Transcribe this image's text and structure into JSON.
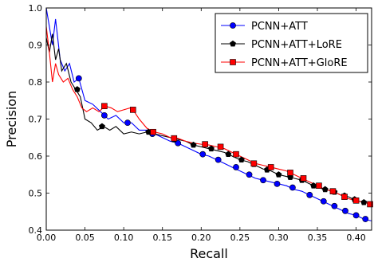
{
  "chart_data": {
    "type": "line",
    "xlabel": "Recall",
    "ylabel": "Precision",
    "xlim": [
      0.0,
      0.42
    ],
    "ylim": [
      0.4,
      1.0
    ],
    "xticks": [
      "0.00",
      "0.05",
      "0.10",
      "0.15",
      "0.20",
      "0.25",
      "0.30",
      "0.35",
      "0.40"
    ],
    "yticks": [
      "0.4",
      "0.5",
      "0.6",
      "0.7",
      "0.8",
      "0.9",
      "1.0"
    ],
    "grid": false,
    "legend_position": "top-right",
    "series": [
      {
        "name": "PCNN+ATT",
        "color": "#0000ff",
        "marker": "circle",
        "points": [
          [
            0.0,
            1.0
          ],
          [
            0.004,
            0.95
          ],
          [
            0.008,
            0.9
          ],
          [
            0.012,
            0.97
          ],
          [
            0.018,
            0.86
          ],
          [
            0.024,
            0.83
          ],
          [
            0.03,
            0.85
          ],
          [
            0.036,
            0.8
          ],
          [
            0.042,
            0.81
          ],
          [
            0.05,
            0.75
          ],
          [
            0.06,
            0.74
          ],
          [
            0.07,
            0.72
          ],
          [
            0.08,
            0.7
          ],
          [
            0.09,
            0.71
          ],
          [
            0.1,
            0.69
          ],
          [
            0.11,
            0.69
          ],
          [
            0.12,
            0.67
          ],
          [
            0.13,
            0.67
          ],
          [
            0.14,
            0.66
          ],
          [
            0.15,
            0.65
          ],
          [
            0.16,
            0.64
          ],
          [
            0.17,
            0.635
          ],
          [
            0.18,
            0.625
          ],
          [
            0.19,
            0.615
          ],
          [
            0.2,
            0.605
          ],
          [
            0.21,
            0.6
          ],
          [
            0.22,
            0.59
          ],
          [
            0.23,
            0.58
          ],
          [
            0.24,
            0.57
          ],
          [
            0.25,
            0.56
          ],
          [
            0.26,
            0.55
          ],
          [
            0.27,
            0.54
          ],
          [
            0.28,
            0.535
          ],
          [
            0.29,
            0.53
          ],
          [
            0.3,
            0.525
          ],
          [
            0.31,
            0.52
          ],
          [
            0.32,
            0.51
          ],
          [
            0.33,
            0.505
          ],
          [
            0.34,
            0.495
          ],
          [
            0.35,
            0.485
          ],
          [
            0.36,
            0.475
          ],
          [
            0.37,
            0.465
          ],
          [
            0.38,
            0.455
          ],
          [
            0.39,
            0.445
          ],
          [
            0.4,
            0.44
          ],
          [
            0.41,
            0.43
          ],
          [
            0.42,
            0.425
          ]
        ],
        "marker_points": [
          [
            0.042,
            0.81
          ],
          [
            0.075,
            0.71
          ],
          [
            0.105,
            0.69
          ],
          [
            0.137,
            0.66
          ],
          [
            0.17,
            0.635
          ],
          [
            0.202,
            0.605
          ],
          [
            0.222,
            0.59
          ],
          [
            0.245,
            0.57
          ],
          [
            0.262,
            0.55
          ],
          [
            0.28,
            0.535
          ],
          [
            0.298,
            0.525
          ],
          [
            0.318,
            0.515
          ],
          [
            0.34,
            0.495
          ],
          [
            0.358,
            0.478
          ],
          [
            0.372,
            0.465
          ],
          [
            0.386,
            0.452
          ],
          [
            0.4,
            0.44
          ],
          [
            0.412,
            0.43
          ]
        ]
      },
      {
        "name": "PCNN+ATT+LoRE",
        "color": "#000000",
        "marker": "pentagon",
        "points": [
          [
            0.0,
            0.92
          ],
          [
            0.004,
            0.88
          ],
          [
            0.008,
            0.93
          ],
          [
            0.012,
            0.86
          ],
          [
            0.016,
            0.89
          ],
          [
            0.02,
            0.83
          ],
          [
            0.026,
            0.85
          ],
          [
            0.032,
            0.8
          ],
          [
            0.038,
            0.78
          ],
          [
            0.044,
            0.76
          ],
          [
            0.05,
            0.7
          ],
          [
            0.058,
            0.69
          ],
          [
            0.066,
            0.67
          ],
          [
            0.074,
            0.68
          ],
          [
            0.082,
            0.67
          ],
          [
            0.09,
            0.68
          ],
          [
            0.1,
            0.66
          ],
          [
            0.11,
            0.665
          ],
          [
            0.12,
            0.66
          ],
          [
            0.13,
            0.665
          ],
          [
            0.14,
            0.66
          ],
          [
            0.15,
            0.655
          ],
          [
            0.16,
            0.65
          ],
          [
            0.17,
            0.645
          ],
          [
            0.18,
            0.64
          ],
          [
            0.19,
            0.63
          ],
          [
            0.2,
            0.625
          ],
          [
            0.21,
            0.62
          ],
          [
            0.22,
            0.615
          ],
          [
            0.23,
            0.61
          ],
          [
            0.24,
            0.6
          ],
          [
            0.25,
            0.59
          ],
          [
            0.26,
            0.585
          ],
          [
            0.27,
            0.575
          ],
          [
            0.28,
            0.565
          ],
          [
            0.29,
            0.56
          ],
          [
            0.3,
            0.55
          ],
          [
            0.31,
            0.545
          ],
          [
            0.32,
            0.54
          ],
          [
            0.33,
            0.535
          ],
          [
            0.34,
            0.525
          ],
          [
            0.35,
            0.515
          ],
          [
            0.36,
            0.51
          ],
          [
            0.37,
            0.505
          ],
          [
            0.38,
            0.495
          ],
          [
            0.39,
            0.49
          ],
          [
            0.4,
            0.48
          ],
          [
            0.41,
            0.475
          ],
          [
            0.42,
            0.47
          ]
        ],
        "marker_points": [
          [
            0.04,
            0.78
          ],
          [
            0.072,
            0.68
          ],
          [
            0.132,
            0.665
          ],
          [
            0.165,
            0.645
          ],
          [
            0.19,
            0.63
          ],
          [
            0.213,
            0.62
          ],
          [
            0.235,
            0.605
          ],
          [
            0.252,
            0.59
          ],
          [
            0.268,
            0.578
          ],
          [
            0.285,
            0.563
          ],
          [
            0.3,
            0.55
          ],
          [
            0.315,
            0.543
          ],
          [
            0.33,
            0.535
          ],
          [
            0.345,
            0.52
          ],
          [
            0.36,
            0.51
          ],
          [
            0.372,
            0.503
          ],
          [
            0.385,
            0.493
          ],
          [
            0.398,
            0.483
          ],
          [
            0.41,
            0.475
          ]
        ]
      },
      {
        "name": "PCNN+ATT+GloRE",
        "color": "#ff0000",
        "marker": "square",
        "points": [
          [
            0.0,
            0.95
          ],
          [
            0.004,
            0.88
          ],
          [
            0.008,
            0.8
          ],
          [
            0.012,
            0.85
          ],
          [
            0.016,
            0.82
          ],
          [
            0.022,
            0.8
          ],
          [
            0.028,
            0.81
          ],
          [
            0.034,
            0.78
          ],
          [
            0.04,
            0.76
          ],
          [
            0.046,
            0.73
          ],
          [
            0.052,
            0.72
          ],
          [
            0.06,
            0.73
          ],
          [
            0.068,
            0.72
          ],
          [
            0.076,
            0.735
          ],
          [
            0.084,
            0.73
          ],
          [
            0.092,
            0.72
          ],
          [
            0.1,
            0.725
          ],
          [
            0.108,
            0.73
          ],
          [
            0.112,
            0.725
          ],
          [
            0.12,
            0.7
          ],
          [
            0.13,
            0.675
          ],
          [
            0.14,
            0.665
          ],
          [
            0.15,
            0.66
          ],
          [
            0.16,
            0.65
          ],
          [
            0.17,
            0.648
          ],
          [
            0.18,
            0.64
          ],
          [
            0.19,
            0.635
          ],
          [
            0.2,
            0.632
          ],
          [
            0.21,
            0.63
          ],
          [
            0.22,
            0.625
          ],
          [
            0.23,
            0.62
          ],
          [
            0.24,
            0.61
          ],
          [
            0.25,
            0.6
          ],
          [
            0.26,
            0.59
          ],
          [
            0.27,
            0.58
          ],
          [
            0.28,
            0.575
          ],
          [
            0.29,
            0.57
          ],
          [
            0.3,
            0.565
          ],
          [
            0.31,
            0.56
          ],
          [
            0.32,
            0.55
          ],
          [
            0.33,
            0.54
          ],
          [
            0.34,
            0.53
          ],
          [
            0.35,
            0.52
          ],
          [
            0.36,
            0.51
          ],
          [
            0.37,
            0.505
          ],
          [
            0.38,
            0.495
          ],
          [
            0.39,
            0.485
          ],
          [
            0.4,
            0.48
          ],
          [
            0.41,
            0.475
          ],
          [
            0.42,
            0.47
          ]
        ],
        "marker_points": [
          [
            0.075,
            0.735
          ],
          [
            0.112,
            0.725
          ],
          [
            0.138,
            0.665
          ],
          [
            0.165,
            0.648
          ],
          [
            0.205,
            0.632
          ],
          [
            0.225,
            0.625
          ],
          [
            0.245,
            0.605
          ],
          [
            0.268,
            0.58
          ],
          [
            0.29,
            0.57
          ],
          [
            0.315,
            0.555
          ],
          [
            0.332,
            0.54
          ],
          [
            0.352,
            0.52
          ],
          [
            0.37,
            0.505
          ],
          [
            0.385,
            0.49
          ],
          [
            0.4,
            0.48
          ],
          [
            0.418,
            0.47
          ]
        ]
      }
    ]
  }
}
